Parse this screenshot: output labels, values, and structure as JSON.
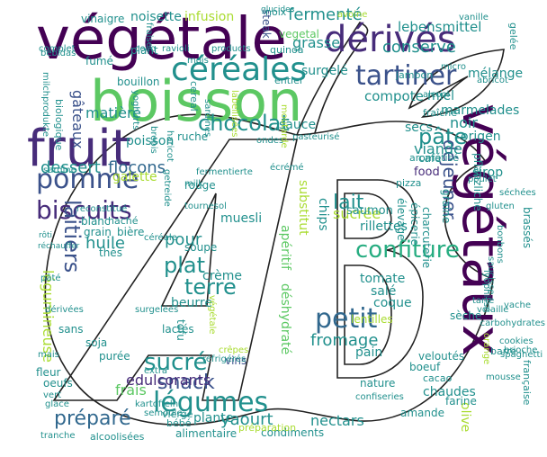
{
  "palette": {
    "purple_dark": "#440154",
    "purple": "#472c7a",
    "indigo": "#3b528b",
    "blue": "#31688e",
    "teal": "#21908d",
    "green_teal": "#27ad81",
    "green": "#5cc863",
    "light_green": "#aadc32",
    "yellow": "#fde725",
    "outline": "#222222"
  },
  "logo_text": "AB",
  "words": [
    {
      "t": "végétale",
      "c": "purple_dark"
    },
    {
      "t": "boisson",
      "c": "green"
    },
    {
      "t": "fruit",
      "c": "purple"
    },
    {
      "t": "céréales",
      "c": "teal"
    },
    {
      "t": "dérivés",
      "c": "purple"
    },
    {
      "t": "tartiner",
      "c": "indigo"
    },
    {
      "t": "chocolat",
      "c": "teal"
    },
    {
      "t": "pomme",
      "c": "indigo"
    },
    {
      "t": "biscuits",
      "c": "purple"
    },
    {
      "t": "végétaux",
      "c": "purple_dark"
    },
    {
      "t": "fermenté",
      "c": "teal"
    },
    {
      "t": "conserve",
      "c": "teal"
    },
    {
      "t": "pâte",
      "c": "teal"
    },
    {
      "t": "lait",
      "c": "teal"
    },
    {
      "t": "confiture",
      "c": "green_teal"
    },
    {
      "t": "petit",
      "c": "blue"
    },
    {
      "t": "sucré",
      "c": "teal"
    },
    {
      "t": "légumes",
      "c": "teal"
    },
    {
      "t": "laitiers",
      "c": "indigo"
    },
    {
      "t": "terre",
      "c": "teal"
    },
    {
      "t": "plat",
      "c": "teal"
    },
    {
      "t": "snack",
      "c": "indigo"
    },
    {
      "t": "préparé",
      "c": "blue"
    },
    {
      "t": "fromage",
      "c": "teal"
    },
    {
      "t": "dessert",
      "c": "teal"
    },
    {
      "t": "flocons",
      "c": "blue"
    },
    {
      "t": "déjeuner",
      "c": "indigo"
    },
    {
      "t": "yaourt",
      "c": "teal"
    },
    {
      "t": "nectars",
      "c": "teal"
    },
    {
      "t": "sucrée",
      "c": "light_green"
    },
    {
      "t": "viande",
      "c": "teal"
    },
    {
      "t": "huile",
      "c": "teal"
    },
    {
      "t": "pour",
      "c": "teal"
    },
    {
      "t": "matière",
      "c": "teal"
    },
    {
      "t": "gâteaux",
      "c": "indigo"
    },
    {
      "t": "lebensmittel",
      "c": "teal"
    },
    {
      "t": "légumineuse",
      "c": "light_green"
    },
    {
      "t": "grasse",
      "c": "teal"
    },
    {
      "t": "compote",
      "c": "teal"
    },
    {
      "t": "miel",
      "c": "teal"
    },
    {
      "t": "marmelades",
      "c": "teal"
    },
    {
      "t": "noir",
      "c": "teal"
    },
    {
      "t": "origen",
      "c": "teal"
    },
    {
      "t": "galette",
      "c": "light_green"
    },
    {
      "t": "frais",
      "c": "green"
    },
    {
      "t": "plante",
      "c": "teal"
    },
    {
      "t": "pain",
      "c": "teal"
    },
    {
      "t": "sauce",
      "c": "teal"
    },
    {
      "t": "surgelé",
      "c": "teal"
    },
    {
      "t": "alimentaire",
      "c": "teal"
    },
    {
      "t": "muesli",
      "c": "teal"
    },
    {
      "t": "soupe",
      "c": "teal"
    },
    {
      "t": "crème",
      "c": "teal"
    },
    {
      "t": "beurre",
      "c": "teal"
    },
    {
      "t": "tomate",
      "c": "teal"
    },
    {
      "t": "salé",
      "c": "teal"
    },
    {
      "t": "coque",
      "c": "teal"
    },
    {
      "t": "rillettes",
      "c": "teal"
    },
    {
      "t": "saumon",
      "c": "teal"
    },
    {
      "t": "chips",
      "c": "teal"
    },
    {
      "t": "apéritif",
      "c": "green"
    },
    {
      "t": "substitut",
      "c": "light_green"
    },
    {
      "t": "déshydraté",
      "c": "green"
    },
    {
      "t": "edulcorants",
      "c": "purple"
    },
    {
      "t": "vins",
      "c": "indigo"
    },
    {
      "t": "amande",
      "c": "teal"
    },
    {
      "t": "olive",
      "c": "light_green"
    },
    {
      "t": "farine",
      "c": "teal"
    },
    {
      "t": "boeuf",
      "c": "teal"
    },
    {
      "t": "cacao",
      "c": "teal"
    },
    {
      "t": "chaudes",
      "c": "teal"
    },
    {
      "t": "soja",
      "c": "teal"
    },
    {
      "t": "purée",
      "c": "teal"
    },
    {
      "t": "fleur",
      "c": "teal"
    },
    {
      "t": "sans",
      "c": "teal"
    },
    {
      "t": "épicerie",
      "c": "teal"
    },
    {
      "t": "charcuterie",
      "c": "teal"
    },
    {
      "t": "pflanzliche",
      "c": "teal"
    },
    {
      "t": "élevage",
      "c": "teal"
    },
    {
      "t": "noisette",
      "c": "teal"
    },
    {
      "t": "vinaigre",
      "c": "teal"
    },
    {
      "t": "infusion",
      "c": "light_green"
    },
    {
      "t": "steak",
      "c": "indigo"
    },
    {
      "t": "noix",
      "c": "teal"
    },
    {
      "t": "fumé",
      "c": "teal"
    },
    {
      "t": "mélange",
      "c": "teal"
    },
    {
      "t": "fraîche",
      "c": "teal"
    },
    {
      "t": "secs",
      "c": "teal"
    },
    {
      "t": "sirop",
      "c": "teal"
    },
    {
      "t": "café",
      "c": "teal"
    },
    {
      "t": "food",
      "c": "purple"
    },
    {
      "t": "pizza",
      "c": "teal"
    },
    {
      "t": "poisson",
      "c": "teal"
    },
    {
      "t": "ruche",
      "c": "teal"
    },
    {
      "t": "rouge",
      "c": "teal"
    },
    {
      "t": "blanc",
      "c": "teal"
    },
    {
      "t": "grain",
      "c": "teal"
    },
    {
      "t": "haché",
      "c": "teal"
    },
    {
      "t": "bière",
      "c": "teal"
    },
    {
      "t": "thés",
      "c": "teal"
    },
    {
      "t": "pâté",
      "c": "teal"
    },
    {
      "t": "lactés",
      "c": "teal"
    },
    {
      "t": "tofu",
      "c": "teal"
    },
    {
      "t": "bouillon",
      "c": "teal"
    },
    {
      "t": "biologique",
      "c": "teal"
    },
    {
      "t": "vegetal",
      "c": "green"
    },
    {
      "t": "plant",
      "c": "teal"
    },
    {
      "t": "jambon",
      "c": "teal"
    },
    {
      "t": "graine",
      "c": "teal"
    },
    {
      "t": "condiments",
      "c": "teal"
    },
    {
      "t": "vierge",
      "c": "teal"
    },
    {
      "t": "bébé",
      "c": "teal"
    },
    {
      "t": "préparation",
      "c": "light_green"
    },
    {
      "t": "alcoolisées",
      "c": "teal"
    },
    {
      "t": "semoule",
      "c": "teal"
    },
    {
      "t": "vert",
      "c": "teal"
    },
    {
      "t": "oeufs",
      "c": "teal"
    },
    {
      "t": "mais",
      "c": "teal"
    },
    {
      "t": "extra",
      "c": "teal"
    },
    {
      "t": "kartoffeln",
      "c": "teal"
    },
    {
      "t": "veloutés",
      "c": "teal"
    },
    {
      "t": "vache",
      "c": "teal"
    },
    {
      "t": "sèche",
      "c": "teal"
    },
    {
      "t": "lentilles",
      "c": "light_green"
    },
    {
      "t": "nature",
      "c": "teal"
    },
    {
      "t": "confiseries",
      "c": "teal"
    },
    {
      "t": "brassés",
      "c": "teal"
    },
    {
      "t": "séchées",
      "c": "teal"
    },
    {
      "t": "aromatisé",
      "c": "teal"
    },
    {
      "t": "quinoa",
      "c": "teal"
    },
    {
      "t": "vanille",
      "c": "teal"
    },
    {
      "t": "complet",
      "c": "teal"
    },
    {
      "t": "fraise",
      "c": "teal"
    },
    {
      "t": "ravioli",
      "c": "teal"
    },
    {
      "t": "products",
      "c": "teal"
    },
    {
      "t": "cereal",
      "c": "teal"
    },
    {
      "t": "milk",
      "c": "teal"
    },
    {
      "t": "tournesol",
      "c": "teal"
    },
    {
      "t": "française",
      "c": "teal"
    },
    {
      "t": "spaghetti",
      "c": "teal"
    },
    {
      "t": "orange",
      "c": "light_green"
    },
    {
      "t": "barre",
      "c": "teal"
    },
    {
      "t": "brioche",
      "c": "teal"
    },
    {
      "t": "mousse",
      "c": "teal"
    },
    {
      "t": "tarte",
      "c": "teal"
    },
    {
      "t": "haricot",
      "c": "teal"
    },
    {
      "t": "ondes",
      "c": "teal"
    },
    {
      "t": "écrémé",
      "c": "teal"
    },
    {
      "t": "pasteurisé",
      "c": "teal"
    },
    {
      "t": "moutarde",
      "c": "light_green"
    },
    {
      "t": "entier",
      "c": "teal"
    },
    {
      "t": "mois",
      "c": "teal"
    },
    {
      "t": "coco",
      "c": "teal"
    },
    {
      "t": "sardine",
      "c": "teal"
    },
    {
      "t": "rôti",
      "c": "teal"
    },
    {
      "t": "glucides",
      "c": "teal"
    },
    {
      "t": "réchauffer",
      "c": "teal"
    },
    {
      "t": "fermentierte",
      "c": "teal"
    },
    {
      "t": "carbohydrates",
      "c": "teal"
    },
    {
      "t": "bonbons",
      "c": "teal"
    },
    {
      "t": "gelée",
      "c": "teal"
    },
    {
      "t": "gluten",
      "c": "teal"
    },
    {
      "t": "abricot",
      "c": "teal"
    },
    {
      "t": "micro",
      "c": "teal"
    },
    {
      "t": "alcool",
      "c": "teal"
    },
    {
      "t": "dérivées",
      "c": "teal"
    },
    {
      "t": "crêpes",
      "c": "light_green"
    },
    {
      "t": "avoine",
      "c": "light_green"
    },
    {
      "t": "saucisse",
      "c": "teal"
    },
    {
      "t": "poulet",
      "c": "teal"
    },
    {
      "t": "getreide",
      "c": "teal"
    },
    {
      "t": "brebis",
      "c": "teal"
    },
    {
      "t": "yoghurts",
      "c": "teal"
    },
    {
      "t": "labellisées",
      "c": "light_green"
    },
    {
      "t": "végétale",
      "c": "light_green"
    },
    {
      "t": "céréale",
      "c": "teal"
    },
    {
      "t": "réfrigérés",
      "c": "teal"
    },
    {
      "t": "milchprodukte",
      "c": "teal"
    },
    {
      "t": "tranche",
      "c": "teal"
    },
    {
      "t": "surgelées",
      "c": "teal"
    },
    {
      "t": "bebidas",
      "c": "teal"
    },
    {
      "t": "reconstitué",
      "c": "teal"
    },
    {
      "t": "lyophilisé",
      "c": "teal"
    },
    {
      "t": "sardines",
      "c": "teal"
    },
    {
      "t": "volaille",
      "c": "teal"
    },
    {
      "t": "glace",
      "c": "teal"
    },
    {
      "t": "cookies",
      "c": "teal"
    }
  ]
}
